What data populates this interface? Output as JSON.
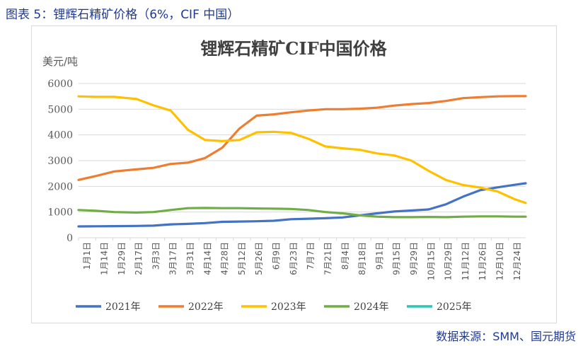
{
  "caption": "图表 5：锂辉石精矿价格（6%，CIF 中国）",
  "source": "数据来源：SMM、国元期货",
  "colors": {
    "2021年": "#4472c4",
    "2022年": "#ed7d31",
    "2023年": "#ffc000",
    "2024年": "#70ad47",
    "2025年": "#2ec4b6",
    "grid": "#d9d9d9",
    "caption": "#1f3a93"
  },
  "chart_data": {
    "type": "line",
    "title": "锂辉石精矿CIF中国价格",
    "ylabel": "美元/吨",
    "xlabel": "",
    "ylim": [
      0,
      6000
    ],
    "yticks": [
      0,
      1000,
      2000,
      3000,
      4000,
      5000,
      6000
    ],
    "x_tick_labels": [
      "1月1日",
      "1月14日",
      "1月29日",
      "2月17日",
      "3月3日",
      "3月17日",
      "3月31日",
      "4月14日",
      "4月28日",
      "5月12日",
      "5月26日",
      "6月9日",
      "6月23日",
      "7月7日",
      "7月21日",
      "8月4日",
      "8月18日",
      "9月1日",
      "9月15日",
      "9月29日",
      "10月15日",
      "10月29日",
      "11月12日",
      "11月26日",
      "12月10日",
      "12月24日"
    ],
    "x_domain": [
      1,
      365
    ],
    "grid": "horizontal",
    "legend_position": "bottom",
    "series": [
      {
        "name": "2021年",
        "x": [
          1,
          15,
          30,
          48,
          62,
          76,
          90,
          104,
          118,
          132,
          146,
          160,
          174,
          188,
          202,
          216,
          230,
          244,
          258,
          272,
          286,
          300,
          314,
          328,
          342,
          356,
          365
        ],
        "values": [
          440,
          445,
          450,
          460,
          470,
          520,
          540,
          570,
          620,
          630,
          640,
          660,
          720,
          740,
          760,
          790,
          870,
          950,
          1020,
          1060,
          1100,
          1300,
          1600,
          1850,
          1960,
          2060,
          2120
        ]
      },
      {
        "name": "2022年",
        "x": [
          1,
          15,
          30,
          48,
          62,
          76,
          90,
          104,
          118,
          132,
          146,
          160,
          174,
          188,
          202,
          216,
          230,
          244,
          258,
          272,
          286,
          300,
          314,
          328,
          342,
          356,
          365
        ],
        "values": [
          2250,
          2400,
          2580,
          2660,
          2720,
          2870,
          2920,
          3100,
          3500,
          4250,
          4750,
          4800,
          4880,
          4950,
          5000,
          5000,
          5020,
          5060,
          5140,
          5200,
          5240,
          5320,
          5430,
          5470,
          5500,
          5510,
          5510
        ]
      },
      {
        "name": "2023年",
        "x": [
          1,
          15,
          30,
          48,
          62,
          76,
          90,
          104,
          118,
          132,
          146,
          160,
          174,
          188,
          202,
          216,
          230,
          244,
          258,
          272,
          286,
          300,
          314,
          328,
          342,
          356,
          365
        ],
        "values": [
          5500,
          5480,
          5480,
          5400,
          5150,
          4950,
          4200,
          3800,
          3760,
          3800,
          4100,
          4120,
          4080,
          3850,
          3550,
          3480,
          3420,
          3280,
          3200,
          3000,
          2600,
          2250,
          2050,
          1950,
          1800,
          1500,
          1350
        ]
      },
      {
        "name": "2024年",
        "x": [
          1,
          15,
          30,
          48,
          62,
          76,
          90,
          104,
          118,
          132,
          146,
          160,
          174,
          188,
          202,
          216,
          230,
          244,
          258,
          272,
          286,
          300,
          314,
          328,
          342,
          356,
          365
        ],
        "values": [
          1080,
          1050,
          1000,
          980,
          1000,
          1080,
          1150,
          1160,
          1150,
          1150,
          1140,
          1130,
          1120,
          1080,
          1000,
          950,
          870,
          820,
          800,
          800,
          810,
          800,
          820,
          830,
          830,
          820,
          820
        ]
      },
      {
        "name": "2025年",
        "x": [],
        "values": []
      }
    ]
  }
}
